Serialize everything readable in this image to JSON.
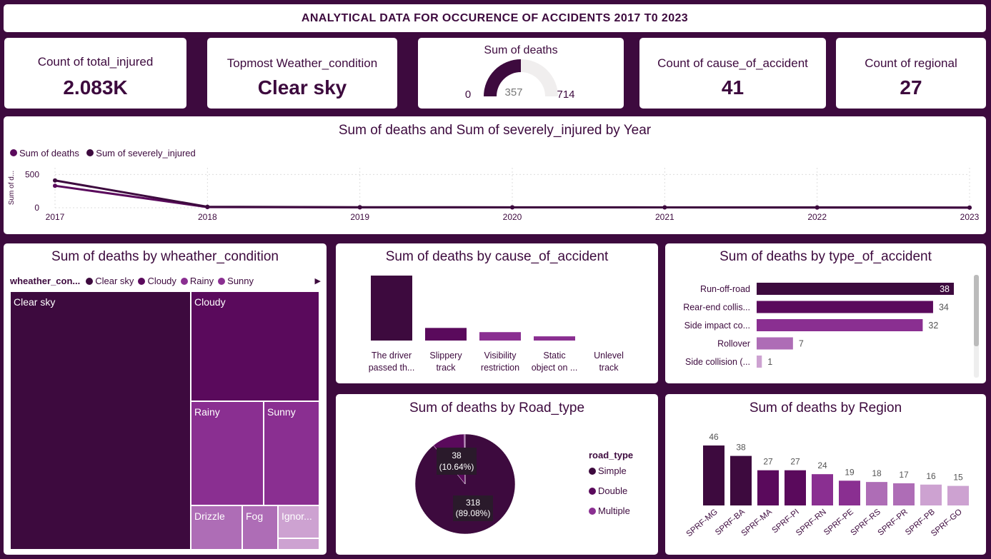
{
  "title": "ANALYTICAL DATA FOR OCCURENCE OF ACCIDENTS 2017 T0 2023",
  "kpis": {
    "total_injured": {
      "label": "Count of total_injured",
      "value": "2.083K"
    },
    "weather": {
      "label": "Topmost Weather_condition",
      "value": "Clear sky"
    },
    "cause": {
      "label": "Count of cause_of_accident",
      "value": "41"
    },
    "regional": {
      "label": "Count of regional",
      "value": "27"
    }
  },
  "gauge": {
    "label": "Sum of deaths",
    "min": "0",
    "value": "357",
    "max": "714",
    "value_num": 357,
    "max_num": 714
  },
  "colors": {
    "dark": "#3d0a3e",
    "mid": "#5a0a5c",
    "violet": "#8a2f91",
    "light": "#ae6db6",
    "pale": "#cda2d1",
    "gray": "#f0eeee"
  },
  "line_chart": {
    "title": "Sum of deaths and Sum of severely_injured by Year",
    "ylabel": "Sum of d...",
    "legend": [
      "Sum of deaths",
      "Sum of severely_injured"
    ],
    "x": [
      "2017",
      "2018",
      "2019",
      "2020",
      "2021",
      "2022",
      "2023"
    ],
    "yticks": [
      "500",
      "0"
    ],
    "ylim": [
      0,
      600
    ],
    "series": [
      {
        "name": "Sum of deaths",
        "values": [
          330,
          10,
          5,
          5,
          5,
          3,
          2
        ]
      },
      {
        "name": "Sum of severely_injured",
        "values": [
          410,
          15,
          8,
          7,
          6,
          5,
          3
        ]
      }
    ]
  },
  "treemap": {
    "title": "Sum of deaths by wheather_condition",
    "legend_title": "wheather_con...",
    "legend": [
      "Clear sky",
      "Cloudy",
      "Rainy",
      "Sunny"
    ],
    "cells": {
      "clear": "Clear sky",
      "cloudy": "Cloudy",
      "rainy": "Rainy",
      "sunny": "Sunny",
      "drizzle": "Drizzle",
      "fog": "Fog",
      "ignored": "Ignor..."
    }
  },
  "cause_chart": {
    "title": "Sum of deaths by cause_of_accident",
    "categories": [
      [
        "The driver",
        "passed th..."
      ],
      [
        "Slippery",
        "track"
      ],
      [
        "Visibility",
        "restriction"
      ],
      [
        "Static",
        "object on ..."
      ],
      [
        "Unlevel",
        "track"
      ]
    ],
    "values": [
      170,
      33,
      22,
      11,
      0
    ],
    "ylim": [
      0,
      170
    ]
  },
  "type_chart": {
    "title": "Sum of deaths by type_of_accident",
    "categories": [
      "Run-off-road",
      "Rear-end collis...",
      "Side impact co...",
      "Rollover",
      "Side collision (..."
    ],
    "values": [
      38,
      34,
      32,
      7,
      1
    ],
    "labels": [
      "38",
      "34",
      "32",
      "7",
      "1"
    ],
    "xlim": [
      0,
      38
    ]
  },
  "pie_chart": {
    "title": "Sum of deaths by Road_type",
    "legend_title": "road_type",
    "legend": [
      "Simple",
      "Double",
      "Multiple"
    ],
    "values": [
      318,
      38,
      1
    ],
    "label_big": [
      "318",
      "(89.08%)"
    ],
    "label_small": [
      "38",
      "(10.64%)"
    ]
  },
  "region_chart": {
    "title": "Sum of deaths by Region",
    "categories": [
      "SPRF-MG",
      "SPRF-BA",
      "SPRF-MA",
      "SPRF-PI",
      "SPRF-RN",
      "SPRF-PE",
      "SPRF-RS",
      "SPRF-PR",
      "SPRF-PB",
      "SPRF-GO"
    ],
    "values": [
      46,
      38,
      27,
      27,
      24,
      19,
      18,
      17,
      16,
      15
    ],
    "labels": [
      "46",
      "38",
      "27",
      "27",
      "24",
      "19",
      "18",
      "17",
      "16",
      "15"
    ],
    "ylim": [
      0,
      46
    ]
  }
}
